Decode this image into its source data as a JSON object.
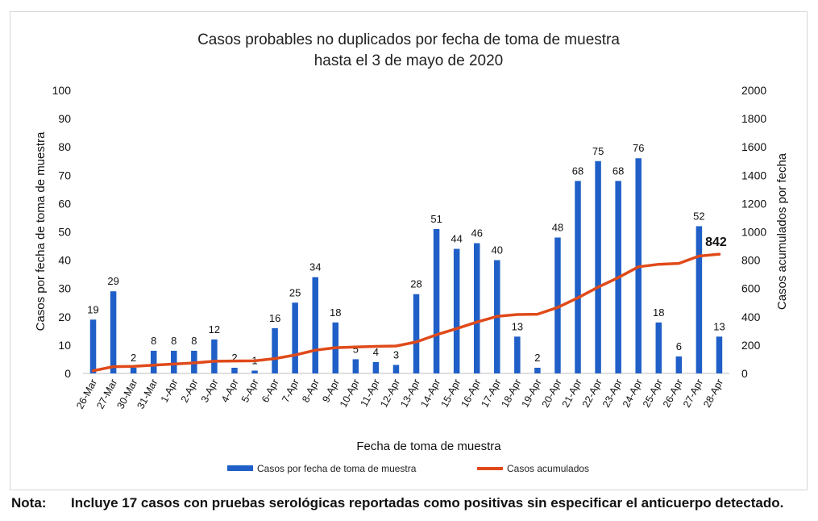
{
  "chart_data": {
    "type": "bar",
    "title": "Casos probables no duplicados por fecha de toma de muestra",
    "subtitle": "hasta el 3 de mayo de 2020",
    "xlabel": "Fecha de toma de muestra",
    "ylabel": "Casos por fecha de toma de muestra",
    "y2label": "Casos acumulados por fecha",
    "ylim": [
      0,
      100
    ],
    "y2lim": [
      0,
      2000
    ],
    "yticks": [
      "0",
      "10",
      "20",
      "30",
      "40",
      "50",
      "60",
      "70",
      "80",
      "90",
      "100"
    ],
    "y2ticks": [
      "0",
      "200",
      "400",
      "600",
      "800",
      "1000",
      "1200",
      "1400",
      "1600",
      "1800",
      "2000"
    ],
    "categories": [
      "26-Mar",
      "27-Mar",
      "30-Mar",
      "31-Mar",
      "1-Apr",
      "2-Apr",
      "3-Apr",
      "4-Apr",
      "5-Apr",
      "6-Apr",
      "7-Apr",
      "8-Apr",
      "9-Apr",
      "10-Apr",
      "11-Apr",
      "12-Apr",
      "13-Apr",
      "14-Apr",
      "15-Apr",
      "16-Apr",
      "17-Apr",
      "18-Apr",
      "19-Apr",
      "20-Apr",
      "21-Apr",
      "22-Apr",
      "23-Apr",
      "24-Apr",
      "25-Apr",
      "26-Apr",
      "27-Apr",
      "28-Apr"
    ],
    "series": [
      {
        "name": "Casos por fecha de toma de muestra",
        "type": "bar",
        "axis": "left",
        "color": "#1f5fc7",
        "values": [
          19,
          29,
          2,
          8,
          8,
          8,
          12,
          2,
          1,
          16,
          25,
          34,
          18,
          5,
          4,
          3,
          28,
          51,
          44,
          46,
          40,
          13,
          2,
          48,
          68,
          75,
          68,
          76,
          18,
          6,
          52,
          13
        ]
      },
      {
        "name": "Casos acumulados",
        "type": "line",
        "axis": "right",
        "color": "#e04a1a",
        "values": [
          19,
          48,
          50,
          58,
          66,
          74,
          86,
          88,
          89,
          105,
          130,
          164,
          182,
          187,
          191,
          194,
          222,
          273,
          317,
          363,
          403,
          416,
          418,
          466,
          534,
          609,
          677,
          753,
          771,
          777,
          829,
          842
        ]
      }
    ],
    "end_label": "842",
    "legend_position": "bottom"
  },
  "note": {
    "label": "Nota:",
    "text": "Incluye 17 casos con pruebas serológicas reportadas como positivas sin especificar el anticuerpo detectado."
  }
}
